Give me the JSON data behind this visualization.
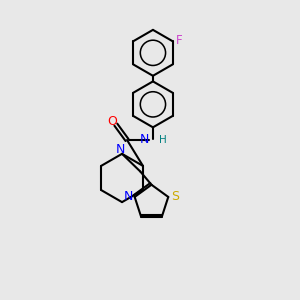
{
  "background_color": "#e8e8e8",
  "bond_color": "#000000",
  "N_color": "#0000ff",
  "O_color": "#ff0000",
  "S_color": "#ccaa00",
  "F_color": "#cc44cc",
  "H_color": "#008080",
  "font_size": 8,
  "figsize": [
    3.0,
    3.0
  ],
  "dpi": 100,
  "xlim": [
    0,
    10
  ],
  "ylim": [
    0,
    10
  ]
}
